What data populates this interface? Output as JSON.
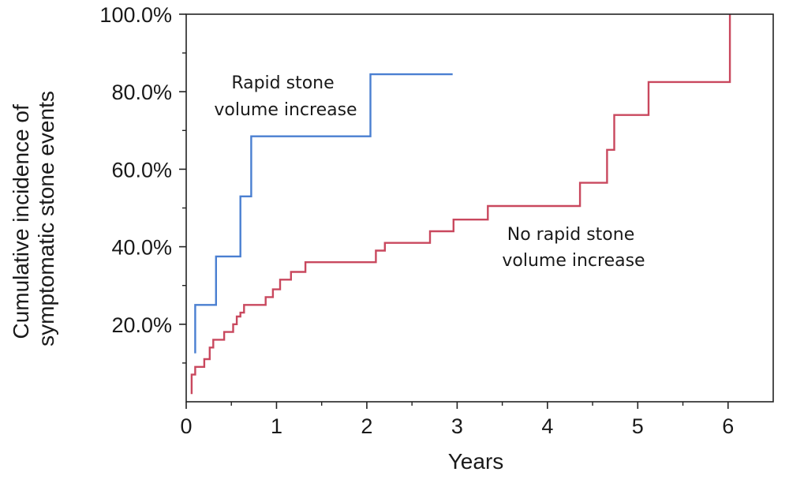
{
  "chart_data": {
    "type": "line",
    "step": true,
    "xlabel": "Years",
    "ylabel_lines": [
      "Cumulative incidence of",
      "symptomatic stone events"
    ],
    "xlim": [
      0,
      6.5
    ],
    "ylim": [
      0,
      100
    ],
    "x_ticks": [
      0,
      1,
      2,
      3,
      4,
      5,
      6
    ],
    "x_tick_labels": [
      "0",
      "1",
      "2",
      "3",
      "4",
      "5",
      "6"
    ],
    "x_minor_ticks": [
      0.5,
      1.5,
      2.5,
      3.5,
      4.5,
      5.5
    ],
    "y_ticks": [
      20,
      40,
      60,
      80,
      100
    ],
    "y_tick_labels": [
      "20.0%",
      "40.0%",
      "60.0%",
      "80.0%",
      "100.0%"
    ],
    "y_minor_ticks": [
      10,
      30,
      50,
      70,
      90
    ],
    "grid": false,
    "series": [
      {
        "name": "Rapid stone volume increase",
        "color": "#4a7fd1",
        "label_lines": [
          "Rapid stone",
          "volume increase"
        ],
        "x": [
          0.1,
          0.1,
          0.33,
          0.33,
          0.6,
          0.6,
          0.72,
          0.72,
          2.04,
          2.04,
          2.95
        ],
        "y": [
          12.5,
          25,
          25,
          37.5,
          37.5,
          53,
          53,
          68.5,
          68.5,
          84.5,
          84.5
        ]
      },
      {
        "name": "No rapid stone volume increase",
        "color": "#c9485e",
        "label_lines": [
          "No rapid stone",
          "volume increase"
        ],
        "x": [
          0.06,
          0.06,
          0.1,
          0.1,
          0.2,
          0.2,
          0.26,
          0.26,
          0.3,
          0.3,
          0.42,
          0.42,
          0.52,
          0.52,
          0.56,
          0.56,
          0.6,
          0.6,
          0.64,
          0.64,
          0.88,
          0.88,
          0.96,
          0.96,
          1.04,
          1.04,
          1.16,
          1.16,
          1.32,
          1.32,
          2.1,
          2.1,
          2.2,
          2.2,
          2.7,
          2.7,
          2.96,
          2.96,
          3.34,
          3.34,
          4.36,
          4.36,
          4.66,
          4.66,
          4.74,
          4.74,
          5.12,
          5.12,
          6.02,
          6.02
        ],
        "y": [
          2,
          7,
          7,
          9,
          9,
          11,
          11,
          14,
          14,
          16,
          16,
          18,
          18,
          20,
          20,
          22,
          22,
          23,
          23,
          25,
          25,
          27,
          27,
          29,
          29,
          31.5,
          31.5,
          33.5,
          33.5,
          36,
          36,
          39,
          39,
          41,
          41,
          44,
          44,
          47,
          47,
          50.5,
          50.5,
          56.5,
          56.5,
          65,
          65,
          74,
          74,
          82.5,
          82.5,
          100
        ]
      }
    ]
  }
}
